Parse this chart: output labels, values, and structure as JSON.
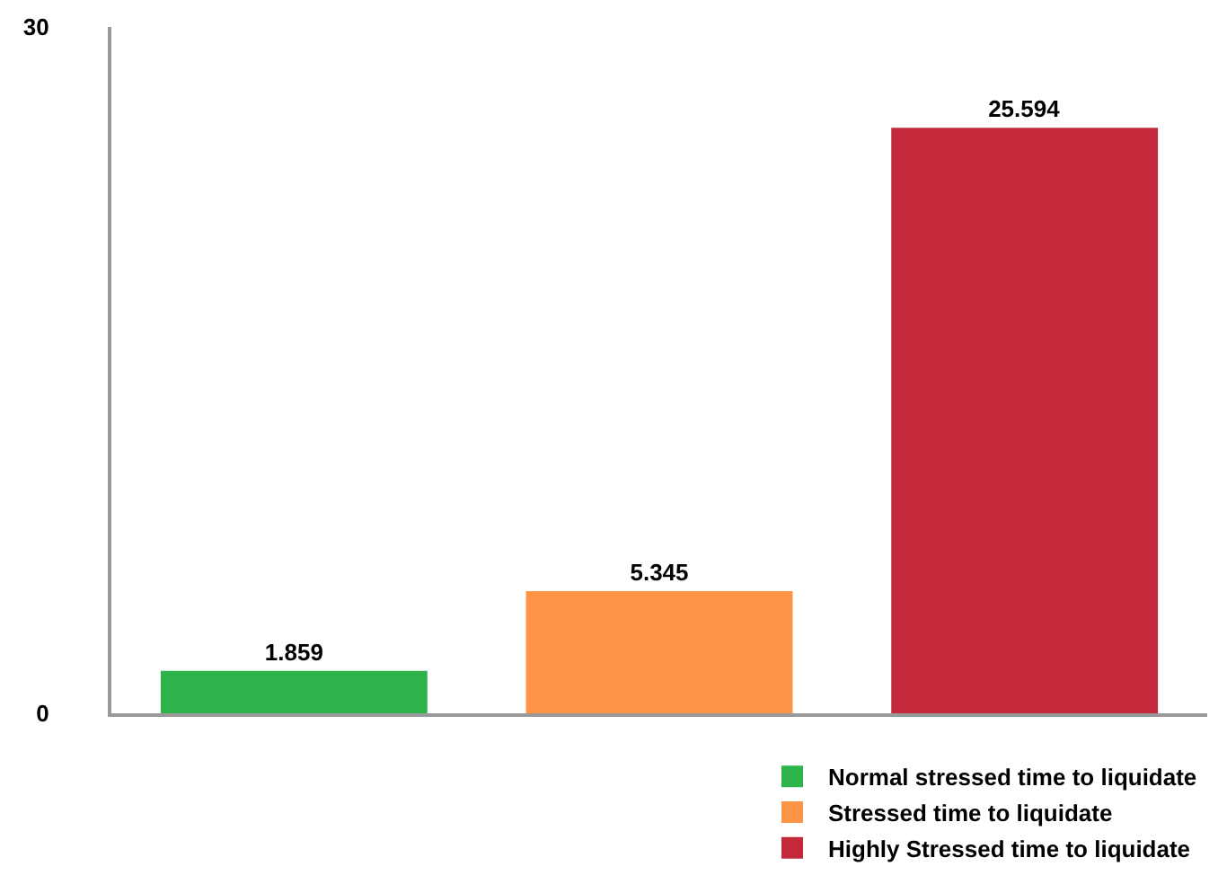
{
  "chart_data": {
    "type": "bar",
    "categories": [
      null,
      null,
      null
    ],
    "series": [
      {
        "name": "Normal stressed time to liquidate",
        "color": "#2db34a",
        "values": [
          1.859,
          null,
          null
        ]
      },
      {
        "name": "Stressed time to liquidate",
        "color": "#fd9346",
        "values": [
          null,
          5.345,
          null
        ]
      },
      {
        "name": "Highly Stressed time to liquidate",
        "color": "#c3293a",
        "values": [
          null,
          null,
          25.594
        ]
      }
    ],
    "ylim": [
      0,
      30
    ],
    "yticks": [
      0,
      30
    ],
    "legend": "bottom right",
    "data_labels": true
  }
}
